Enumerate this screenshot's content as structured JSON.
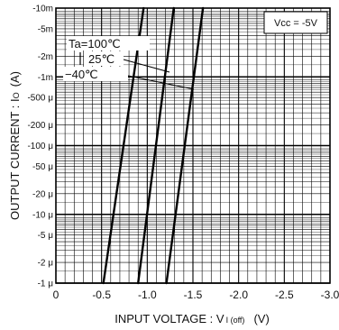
{
  "chart_data": {
    "type": "line",
    "xlabel": "INPUT  VOLTAGE : V",
    "xlabel_sub": "I (off)",
    "xlabel_unit": "(V)",
    "ylabel": "OUTPUT  CURRENT : I",
    "ylabel_sub": "O",
    "ylabel_unit": "(A)",
    "xlim": [
      0,
      -3.0
    ],
    "ylim": [
      1e-06,
      0.01
    ],
    "yscale": "log",
    "grid": true,
    "x_ticks": [
      "0",
      "-0.5",
      "-1.0",
      "-1.5",
      "-2.0",
      "-2.5",
      "-3.0"
    ],
    "y_ticks": [
      "-10m",
      "-5m",
      "-2m",
      "-1m",
      "-500 μ",
      "-200 μ",
      "-100 μ",
      "-50 μ",
      "-20 μ",
      "-10 μ",
      "-5 μ",
      "-2 μ",
      "-1 μ"
    ],
    "y_tick_values": [
      0.01,
      0.005,
      0.002,
      0.001,
      0.0005,
      0.0002,
      0.0001,
      5e-05,
      2e-05,
      1e-05,
      5e-06,
      2e-06,
      1e-06
    ],
    "annotation_box": "Vcc = -5V",
    "legend_title": "Ta = ",
    "series": [
      {
        "name": "100℃",
        "x": [
          -0.52,
          -0.96
        ],
        "y": [
          1e-06,
          0.01
        ]
      },
      {
        "name": "25℃",
        "x": [
          -0.9,
          -1.29
        ],
        "y": [
          1e-06,
          0.01
        ]
      },
      {
        "name": "-40℃",
        "x": [
          -1.21,
          -1.61
        ],
        "y": [
          1e-06,
          0.01
        ]
      }
    ],
    "series_labels": [
      "Ta=100℃",
      "25℃",
      "−40℃"
    ]
  }
}
